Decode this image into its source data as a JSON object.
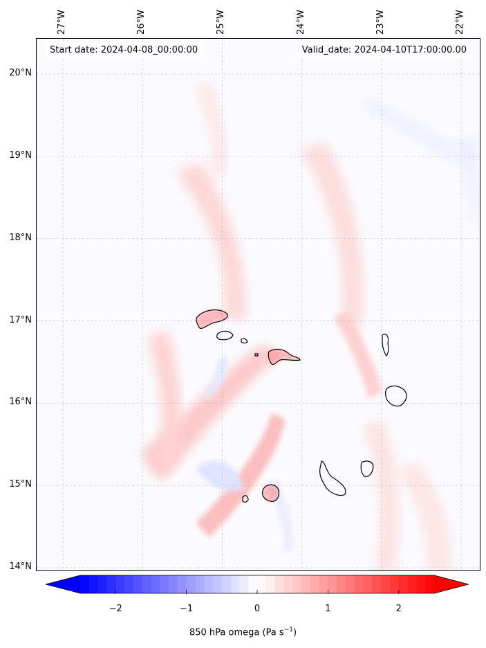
{
  "map": {
    "variable": "850 hPa omega",
    "units": "Pa s",
    "units_exponent": "−1",
    "start_date_label": "Start date: 2024-04-08_00:00:00",
    "valid_date_label": "Valid_date: 2024-04-10T17:00:00.00",
    "lon_labels": [
      "27°W",
      "26°W",
      "25°W",
      "24°W",
      "23°W",
      "22°W"
    ],
    "lat_labels": [
      "20°N",
      "19°N",
      "18°N",
      "17°N",
      "16°N",
      "15°N",
      "14°N"
    ],
    "lon_values": [
      -27,
      -26,
      -25,
      -24,
      -23,
      -22
    ],
    "lat_values": [
      20,
      19,
      18,
      17,
      16,
      15,
      14
    ],
    "extent": {
      "lon_min": -27.33,
      "lon_max": -21.75,
      "lat_min": 13.95,
      "lat_max": 20.43
    },
    "gridlines": true,
    "colormap": "bwr",
    "colors": {
      "negative": "#0000ff",
      "neutral": "#ffffff",
      "positive": "#ff0000",
      "coastline": "#000000"
    }
  },
  "colorbar": {
    "tick_labels": [
      "−2",
      "−1",
      "0",
      "1",
      "2"
    ],
    "tick_values": [
      -2,
      -1,
      0,
      1,
      2
    ],
    "range": [
      -2.5,
      2.5
    ],
    "extend": "both",
    "orientation": "horizontal"
  }
}
